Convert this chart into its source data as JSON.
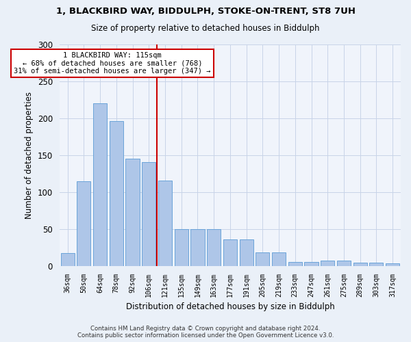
{
  "title1": "1, BLACKBIRD WAY, BIDDULPH, STOKE-ON-TRENT, ST8 7UH",
  "title2": "Size of property relative to detached houses in Biddulph",
  "xlabel": "Distribution of detached houses by size in Biddulph",
  "ylabel": "Number of detached properties",
  "categories": [
    "36sqm",
    "50sqm",
    "64sqm",
    "78sqm",
    "92sqm",
    "106sqm",
    "121sqm",
    "135sqm",
    "149sqm",
    "163sqm",
    "177sqm",
    "191sqm",
    "205sqm",
    "219sqm",
    "233sqm",
    "247sqm",
    "261sqm",
    "275sqm",
    "289sqm",
    "303sqm",
    "317sqm"
  ],
  "values": [
    17,
    115,
    220,
    196,
    145,
    141,
    116,
    50,
    50,
    50,
    36,
    36,
    18,
    18,
    5,
    5,
    7,
    7,
    4,
    4,
    3
  ],
  "bar_color": "#aec6e8",
  "bar_edge_color": "#5b9bd5",
  "vline_x": 5.5,
  "vline_color": "#cc0000",
  "annotation_text": "1 BLACKBIRD WAY: 115sqm\n← 68% of detached houses are smaller (768)\n31% of semi-detached houses are larger (347) →",
  "annotation_box_color": "#ffffff",
  "annotation_box_edge": "#cc0000",
  "ylim": [
    0,
    300
  ],
  "yticks": [
    0,
    50,
    100,
    150,
    200,
    250,
    300
  ],
  "footer": "Contains HM Land Registry data © Crown copyright and database right 2024.\nContains public sector information licensed under the Open Government Licence v3.0.",
  "bg_color": "#eaf0f8",
  "plot_bg_color": "#f0f4fb"
}
